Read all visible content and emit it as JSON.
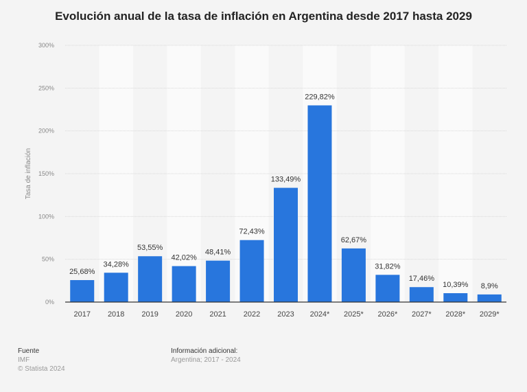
{
  "chart_data": {
    "type": "bar",
    "title": "Evolución anual de la tasa de inflación en Argentina desde 2017 hasta 2029",
    "xlabel": "",
    "ylabel": "Tasa de inflación",
    "categories": [
      "2017",
      "2018",
      "2019",
      "2020",
      "2021",
      "2022",
      "2023",
      "2024*",
      "2025*",
      "2026*",
      "2027*",
      "2028*",
      "2029*"
    ],
    "values": [
      25.68,
      34.28,
      53.55,
      42.02,
      48.41,
      72.43,
      133.49,
      229.82,
      62.67,
      31.82,
      17.46,
      10.39,
      8.9
    ],
    "data_labels": [
      "25,68%",
      "34,28%",
      "53,55%",
      "42,02%",
      "48,41%",
      "72,43%",
      "133,49%",
      "229,82%",
      "62,67%",
      "31,82%",
      "17,46%",
      "10,39%",
      "8,9%"
    ],
    "ylim": [
      0,
      300
    ],
    "yticks": [
      0,
      50,
      100,
      150,
      200,
      250,
      300
    ],
    "ytick_labels": [
      "0%",
      "50%",
      "100%",
      "150%",
      "200%",
      "250%",
      "300%"
    ],
    "grid": true,
    "bar_color": "#2876dd"
  },
  "footer": {
    "source_heading": "Fuente",
    "source": "IMF",
    "copyright": "© Statista 2024",
    "info_heading": "Información adicional:",
    "info": "Argentina; 2017 - 2024"
  }
}
